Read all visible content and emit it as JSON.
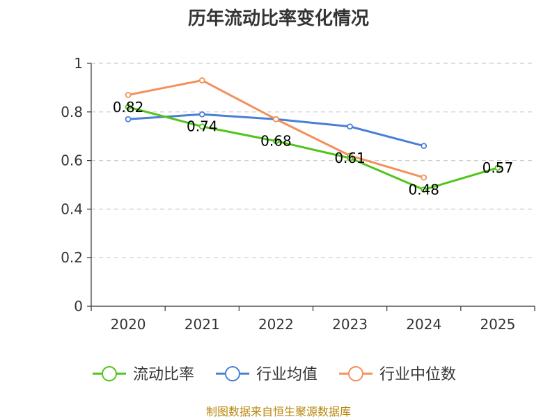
{
  "chart_data": {
    "type": "line",
    "title": "历年流动比率变化情况",
    "categories": [
      "2020",
      "2021",
      "2022",
      "2023",
      "2024",
      "2025"
    ],
    "ylim": [
      0,
      1
    ],
    "yticks": [
      0,
      0.2,
      0.4,
      0.6,
      0.8,
      1
    ],
    "ytick_labels": [
      "0",
      "0.2",
      "0.4",
      "0.6",
      "0.8",
      "1"
    ],
    "grid": true,
    "legend_position": "bottom",
    "series": [
      {
        "name": "流动比率",
        "color": "#52c41a",
        "values": [
          0.82,
          0.74,
          0.68,
          0.61,
          0.48,
          0.57
        ],
        "labels": [
          "0.82",
          "0.74",
          "0.68",
          "0.61",
          "0.48",
          "0.57"
        ],
        "show_labels": true
      },
      {
        "name": "行业均值",
        "color": "#4a7fd6",
        "values": [
          0.77,
          0.79,
          0.77,
          0.74,
          0.66,
          null
        ],
        "show_labels": false
      },
      {
        "name": "行业中位数",
        "color": "#f4905a",
        "values": [
          0.87,
          0.93,
          0.77,
          0.62,
          0.53,
          null
        ],
        "show_labels": false
      }
    ]
  },
  "source": "制图数据来自恒生聚源数据库"
}
